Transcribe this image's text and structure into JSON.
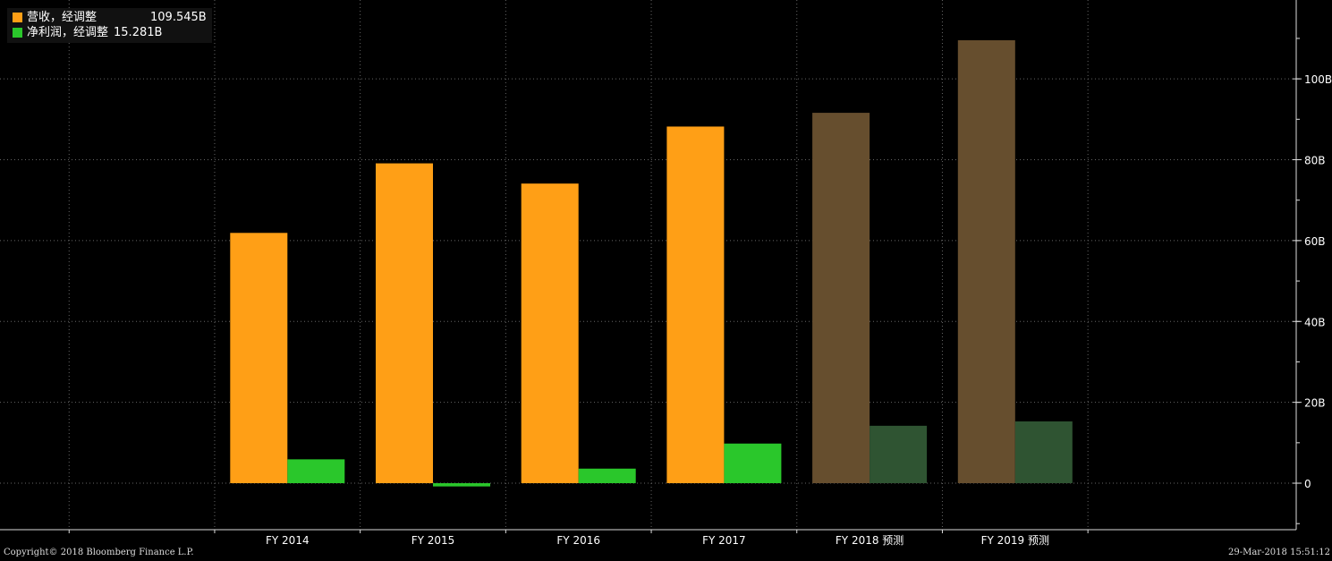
{
  "chart_data": {
    "type": "bar",
    "categories": [
      "FY 2014",
      "FY 2015",
      "FY 2016",
      "FY 2017",
      "FY 2018 预测",
      "FY 2019 预测"
    ],
    "estimated": [
      false,
      false,
      false,
      false,
      true,
      true
    ],
    "series": [
      {
        "name": "营收，经调整",
        "legend_value": "109.545B",
        "color": "#ff9f16",
        "estimate_color": "#664e2e",
        "values": [
          61.9,
          79.1,
          74.1,
          88.2,
          91.6,
          109.545
        ]
      },
      {
        "name": "净利润，经调整",
        "legend_value": "15.281B",
        "color": "#2ac72b",
        "estimate_color": "#2f5432",
        "values": [
          5.9,
          -0.8,
          3.6,
          9.8,
          14.2,
          15.281
        ]
      }
    ],
    "y_ticks": [
      0,
      20,
      40,
      60,
      80,
      100
    ],
    "y_tick_labels": [
      "0",
      "20B",
      "40B",
      "60B",
      "80B",
      "100B"
    ],
    "ylim": [
      -11.5,
      119.5
    ],
    "y_axis_position": "right",
    "grid": true,
    "legend_position": "top-left",
    "title": "",
    "xlabel": "",
    "ylabel": ""
  },
  "footer": {
    "copyright": "Copyright© 2018 Bloomberg Finance L.P.",
    "timestamp": "29-Mar-2018 15:51:12"
  }
}
